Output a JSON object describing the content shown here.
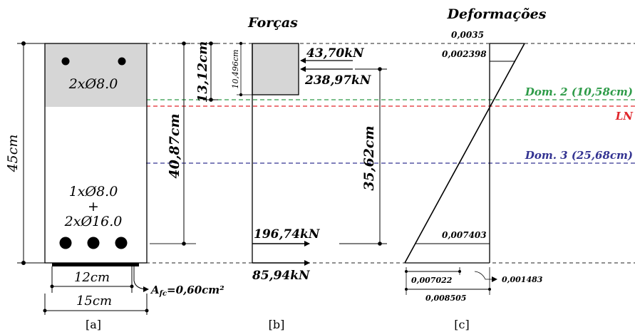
{
  "titles": {
    "forces": "Forças",
    "strains": "Deformações"
  },
  "section": {
    "height": "45cm",
    "top_bars": "2xØ8.0",
    "bottom_bars_line1": "1xØ8.0",
    "bottom_bars_plus": "+",
    "bottom_bars_line2": "2xØ16.0",
    "depth_to_dom2": "13,12cm",
    "effective_depth": "40,87cm",
    "inner_width": "12cm",
    "outer_width": "15cm",
    "afc_prefix": "A",
    "afc_sub": "fc",
    "afc_value": "=0,60cm²"
  },
  "forces": {
    "block_depth": "10,496cm",
    "force_top_bars": "43,70kN",
    "force_concrete": "238,97kN",
    "lever_arm": "35,62cm",
    "force_bottom_bars": "196,74kN",
    "force_frp": "85,94kN"
  },
  "strains": {
    "top": "0,0035",
    "top_bars": "0,002398",
    "bottom_bars": "0,007403",
    "frp_a": "0,007022",
    "frp_b": "0,001483",
    "frp_total": "0,008505"
  },
  "lines": {
    "dom2": "Dom. 2 (10,58cm)",
    "ln": "LN",
    "dom3": "Dom. 3 (25,68cm)"
  },
  "panels": {
    "a": "[a]",
    "b": "[b]",
    "c": "[c]"
  },
  "colors": {
    "dom2": "#2e9b48",
    "ln": "#e0262b",
    "dom3": "#343492",
    "gray_fill": "#d6d6d6"
  }
}
